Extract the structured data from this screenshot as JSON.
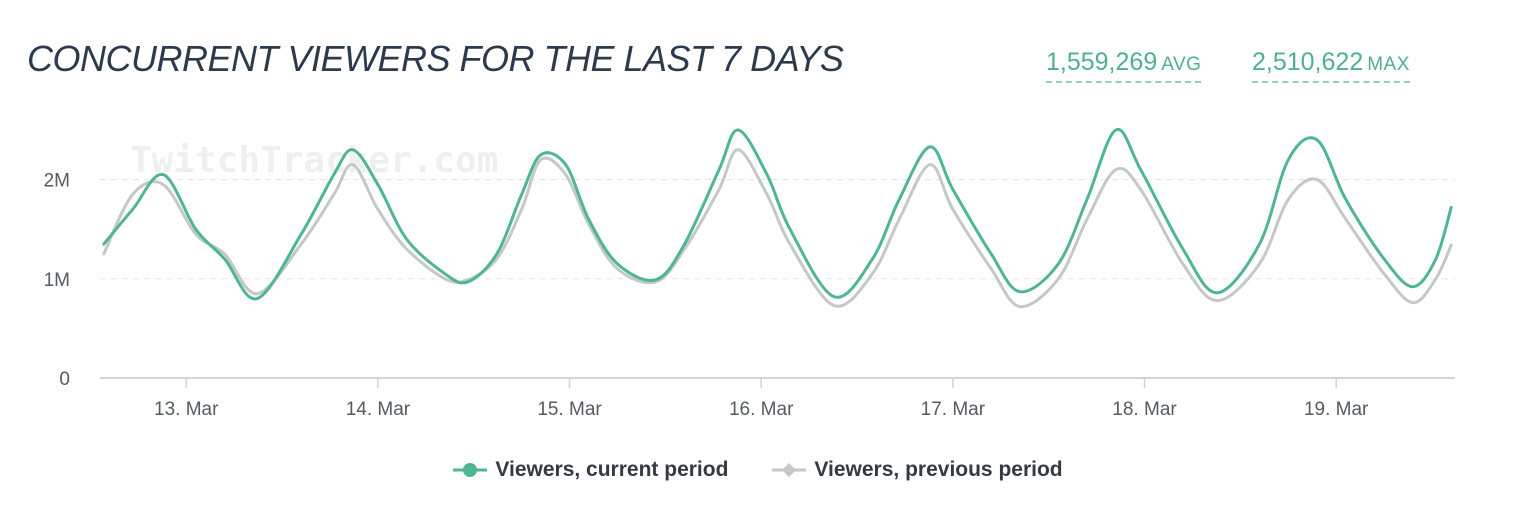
{
  "header": {
    "title": "CONCURRENT VIEWERS FOR THE LAST 7 DAYS",
    "avg_value": "1,559,269",
    "avg_unit": "AVG",
    "max_value": "2,510,622",
    "max_unit": "MAX"
  },
  "watermark": "TwitchTracker.com",
  "colors": {
    "current": "#4fb593",
    "previous": "#c4c8ca",
    "grid": "#e3e3e3",
    "axis": "#cdd4de"
  },
  "chart_data": {
    "type": "line",
    "xlabel": "",
    "ylabel": "",
    "x_unit": "days (March)",
    "xlim": [
      12.55,
      19.62
    ],
    "ylim": [
      0,
      2500000
    ],
    "y_ticks": [
      0,
      1000000,
      2000000
    ],
    "y_tick_labels": [
      "0",
      "1M",
      "2M"
    ],
    "x_ticks": [
      13,
      14,
      15,
      16,
      17,
      18,
      19
    ],
    "x_tick_labels": [
      "13. Mar",
      "14. Mar",
      "15. Mar",
      "16. Mar",
      "17. Mar",
      "18. Mar",
      "19. Mar"
    ],
    "grid": true,
    "legend_position": "bottom-center",
    "series": [
      {
        "name": "Viewers, current period",
        "points": [
          [
            12.57,
            1350000
          ],
          [
            12.72,
            1700000
          ],
          [
            12.88,
            2050000
          ],
          [
            13.05,
            1500000
          ],
          [
            13.2,
            1200000
          ],
          [
            13.37,
            800000
          ],
          [
            13.6,
            1450000
          ],
          [
            13.77,
            2050000
          ],
          [
            13.87,
            2300000
          ],
          [
            14.0,
            1950000
          ],
          [
            14.15,
            1400000
          ],
          [
            14.35,
            1050000
          ],
          [
            14.47,
            970000
          ],
          [
            14.62,
            1250000
          ],
          [
            14.75,
            1850000
          ],
          [
            14.85,
            2250000
          ],
          [
            14.98,
            2150000
          ],
          [
            15.1,
            1600000
          ],
          [
            15.25,
            1150000
          ],
          [
            15.45,
            990000
          ],
          [
            15.6,
            1350000
          ],
          [
            15.78,
            2100000
          ],
          [
            15.88,
            2500000
          ],
          [
            16.03,
            2050000
          ],
          [
            16.15,
            1500000
          ],
          [
            16.38,
            820000
          ],
          [
            16.58,
            1200000
          ],
          [
            16.72,
            1800000
          ],
          [
            16.88,
            2330000
          ],
          [
            17.0,
            1900000
          ],
          [
            17.2,
            1250000
          ],
          [
            17.35,
            870000
          ],
          [
            17.55,
            1150000
          ],
          [
            17.7,
            1800000
          ],
          [
            17.85,
            2500000
          ],
          [
            17.98,
            2100000
          ],
          [
            18.2,
            1300000
          ],
          [
            18.38,
            860000
          ],
          [
            18.6,
            1350000
          ],
          [
            18.75,
            2200000
          ],
          [
            18.9,
            2400000
          ],
          [
            19.05,
            1800000
          ],
          [
            19.25,
            1200000
          ],
          [
            19.4,
            920000
          ],
          [
            19.52,
            1200000
          ],
          [
            19.6,
            1720000
          ]
        ]
      },
      {
        "name": "Viewers, previous period",
        "points": [
          [
            12.57,
            1250000
          ],
          [
            12.72,
            1850000
          ],
          [
            12.88,
            1950000
          ],
          [
            13.05,
            1450000
          ],
          [
            13.2,
            1250000
          ],
          [
            13.37,
            850000
          ],
          [
            13.6,
            1350000
          ],
          [
            13.77,
            1850000
          ],
          [
            13.87,
            2150000
          ],
          [
            14.0,
            1700000
          ],
          [
            14.15,
            1300000
          ],
          [
            14.35,
            1000000
          ],
          [
            14.47,
            990000
          ],
          [
            14.62,
            1200000
          ],
          [
            14.75,
            1700000
          ],
          [
            14.85,
            2200000
          ],
          [
            14.98,
            2050000
          ],
          [
            15.1,
            1550000
          ],
          [
            15.25,
            1100000
          ],
          [
            15.45,
            970000
          ],
          [
            15.6,
            1300000
          ],
          [
            15.78,
            1900000
          ],
          [
            15.88,
            2300000
          ],
          [
            16.03,
            1850000
          ],
          [
            16.15,
            1350000
          ],
          [
            16.38,
            730000
          ],
          [
            16.58,
            1050000
          ],
          [
            16.72,
            1600000
          ],
          [
            16.88,
            2150000
          ],
          [
            17.0,
            1700000
          ],
          [
            17.2,
            1100000
          ],
          [
            17.35,
            720000
          ],
          [
            17.55,
            1000000
          ],
          [
            17.7,
            1600000
          ],
          [
            17.85,
            2100000
          ],
          [
            17.98,
            1900000
          ],
          [
            18.2,
            1150000
          ],
          [
            18.38,
            780000
          ],
          [
            18.6,
            1150000
          ],
          [
            18.75,
            1800000
          ],
          [
            18.9,
            2000000
          ],
          [
            19.05,
            1600000
          ],
          [
            19.25,
            1050000
          ],
          [
            19.4,
            760000
          ],
          [
            19.52,
            1000000
          ],
          [
            19.6,
            1340000
          ]
        ]
      }
    ]
  }
}
